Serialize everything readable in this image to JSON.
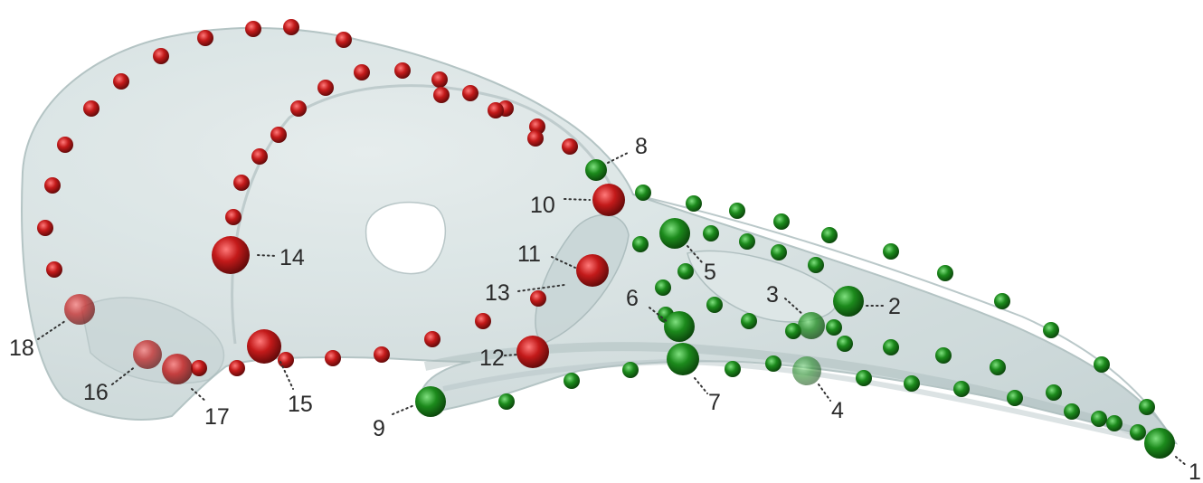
{
  "figure": {
    "colors": {
      "skull_fill": "#cdd9da",
      "skull_edge": "#aebfc0",
      "landmark": "#1a7a1a",
      "semilandmark": "#b01818"
    },
    "labels": [
      "1",
      "2",
      "3",
      "4",
      "5",
      "6",
      "7",
      "8",
      "9",
      "10",
      "11",
      "12",
      "13",
      "14",
      "15",
      "16",
      "17",
      "18"
    ]
  }
}
